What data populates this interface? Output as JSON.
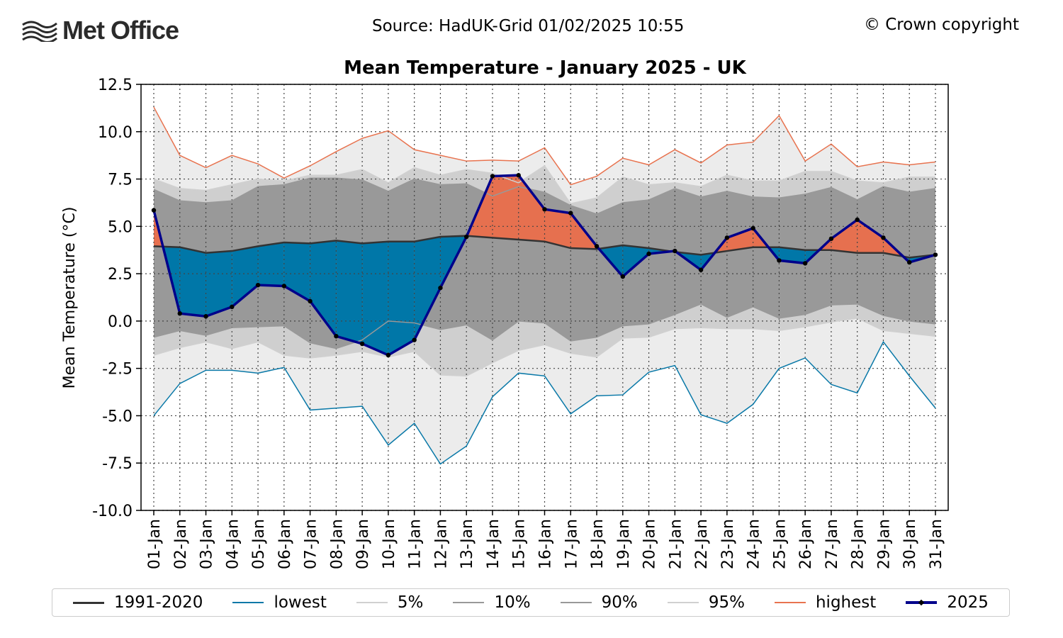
{
  "header": {
    "logo_text": "Met Office",
    "source": "Source: HadUK-Grid 01/02/2025 10:55",
    "copyright": "© Crown copyright"
  },
  "chart_data": {
    "type": "line",
    "title": "Mean Temperature - January 2025 - UK",
    "xlabel": "",
    "ylabel": "Mean Temperature (°C)",
    "ylim": [
      -10,
      12.5
    ],
    "yticks": [
      "-10.0",
      "-7.5",
      "-5.0",
      "-2.5",
      "0.0",
      "2.5",
      "5.0",
      "7.5",
      "10.0",
      "12.5"
    ],
    "grid": true,
    "legend_position": "bottom",
    "categories": [
      "01-Jan",
      "02-Jan",
      "03-Jan",
      "04-Jan",
      "05-Jan",
      "06-Jan",
      "07-Jan",
      "08-Jan",
      "09-Jan",
      "10-Jan",
      "11-Jan",
      "12-Jan",
      "13-Jan",
      "14-Jan",
      "15-Jan",
      "16-Jan",
      "17-Jan",
      "18-Jan",
      "19-Jan",
      "20-Jan",
      "21-Jan",
      "22-Jan",
      "23-Jan",
      "24-Jan",
      "25-Jan",
      "26-Jan",
      "27-Jan",
      "28-Jan",
      "29-Jan",
      "30-Jan",
      "31-Jan"
    ],
    "series": [
      {
        "name": "1991-2020",
        "color": "#333333",
        "values": [
          3.95,
          3.9,
          3.6,
          3.7,
          3.95,
          4.15,
          4.1,
          4.25,
          4.1,
          4.2,
          4.2,
          4.45,
          4.5,
          4.4,
          4.3,
          4.2,
          3.85,
          3.8,
          4.0,
          3.85,
          3.65,
          3.5,
          3.7,
          3.9,
          3.9,
          3.75,
          3.75,
          3.6,
          3.6,
          3.35,
          3.5
        ]
      },
      {
        "name": "lowest",
        "color": "#0a79a8",
        "values": [
          -5.0,
          -3.3,
          -2.6,
          -2.6,
          -2.75,
          -2.45,
          -4.7,
          -4.6,
          -4.5,
          -6.55,
          -5.4,
          -7.55,
          -6.6,
          -4.0,
          -2.75,
          -2.9,
          -4.9,
          -3.95,
          -3.9,
          -2.7,
          -2.35,
          -4.95,
          -5.4,
          -4.4,
          -2.5,
          -1.95,
          -3.35,
          -3.8,
          -1.1,
          -2.9,
          -4.6
        ]
      },
      {
        "name": "5%",
        "color": "#d0d0d0",
        "values": [
          -1.8,
          -1.4,
          -1.1,
          -1.45,
          -1.1,
          -1.8,
          -1.95,
          -1.8,
          -1.6,
          -1.9,
          -1.6,
          -2.85,
          -2.9,
          -2.2,
          -1.55,
          -1.25,
          -1.7,
          -1.9,
          -0.9,
          -0.85,
          -0.4,
          -0.35,
          -0.4,
          -0.4,
          -0.5,
          -0.3,
          -0.05,
          0.15,
          -0.5,
          -0.65,
          -0.8
        ]
      },
      {
        "name": "10%",
        "color": "#999999",
        "values": [
          -0.85,
          -0.5,
          -0.75,
          -0.35,
          -0.3,
          -0.25,
          -1.15,
          -1.45,
          -1.0,
          0.0,
          -0.1,
          -0.45,
          -0.2,
          -1.0,
          0.0,
          -0.1,
          -1.05,
          -0.85,
          -0.25,
          -0.15,
          0.35,
          0.9,
          0.2,
          0.75,
          0.15,
          0.35,
          0.85,
          0.9,
          0.3,
          0.0,
          -0.15
        ]
      },
      {
        "name": "90%",
        "color": "#999999",
        "values": [
          6.95,
          6.35,
          6.25,
          6.35,
          7.1,
          7.2,
          7.55,
          7.55,
          7.45,
          6.85,
          7.5,
          7.2,
          7.25,
          6.6,
          7.1,
          6.8,
          6.1,
          5.65,
          6.25,
          6.4,
          7.0,
          6.55,
          6.85,
          6.55,
          6.5,
          6.7,
          7.05,
          6.4,
          7.1,
          6.8,
          7.0
        ]
      },
      {
        "name": "95%",
        "color": "#d0d0d0",
        "values": [
          7.5,
          7.0,
          6.9,
          7.2,
          7.5,
          7.4,
          7.7,
          7.7,
          8.0,
          7.3,
          8.1,
          7.7,
          8.0,
          7.8,
          7.3,
          8.2,
          6.2,
          6.5,
          7.6,
          7.2,
          7.3,
          7.1,
          7.7,
          7.4,
          7.4,
          7.9,
          7.9,
          7.4,
          7.3,
          7.6,
          7.6
        ]
      },
      {
        "name": "highest",
        "color": "#e8734f",
        "values": [
          11.3,
          8.75,
          8.1,
          8.75,
          8.3,
          7.55,
          8.2,
          8.95,
          9.65,
          10.05,
          9.05,
          8.75,
          8.45,
          8.5,
          8.45,
          9.15,
          7.2,
          7.65,
          8.6,
          8.25,
          9.05,
          8.35,
          9.3,
          9.45,
          10.85,
          8.45,
          9.35,
          8.15,
          8.4,
          8.25,
          8.4
        ]
      },
      {
        "name": "2025",
        "color": "#00008b",
        "values": [
          5.85,
          0.4,
          0.25,
          0.75,
          1.9,
          1.85,
          1.05,
          -0.8,
          -1.2,
          -1.8,
          -1.0,
          1.75,
          4.45,
          7.65,
          7.7,
          5.9,
          5.7,
          3.95,
          2.35,
          3.55,
          3.7,
          2.7,
          4.4,
          4.9,
          3.2,
          3.05,
          4.35,
          5.35,
          4.4,
          3.1,
          3.5
        ]
      }
    ],
    "fill_colors": {
      "above": "#e6704f",
      "below": "#0077a8",
      "outer_band": "#ececec",
      "band_5_95": "#cfcfcf",
      "band_10_90": "#999999"
    }
  }
}
